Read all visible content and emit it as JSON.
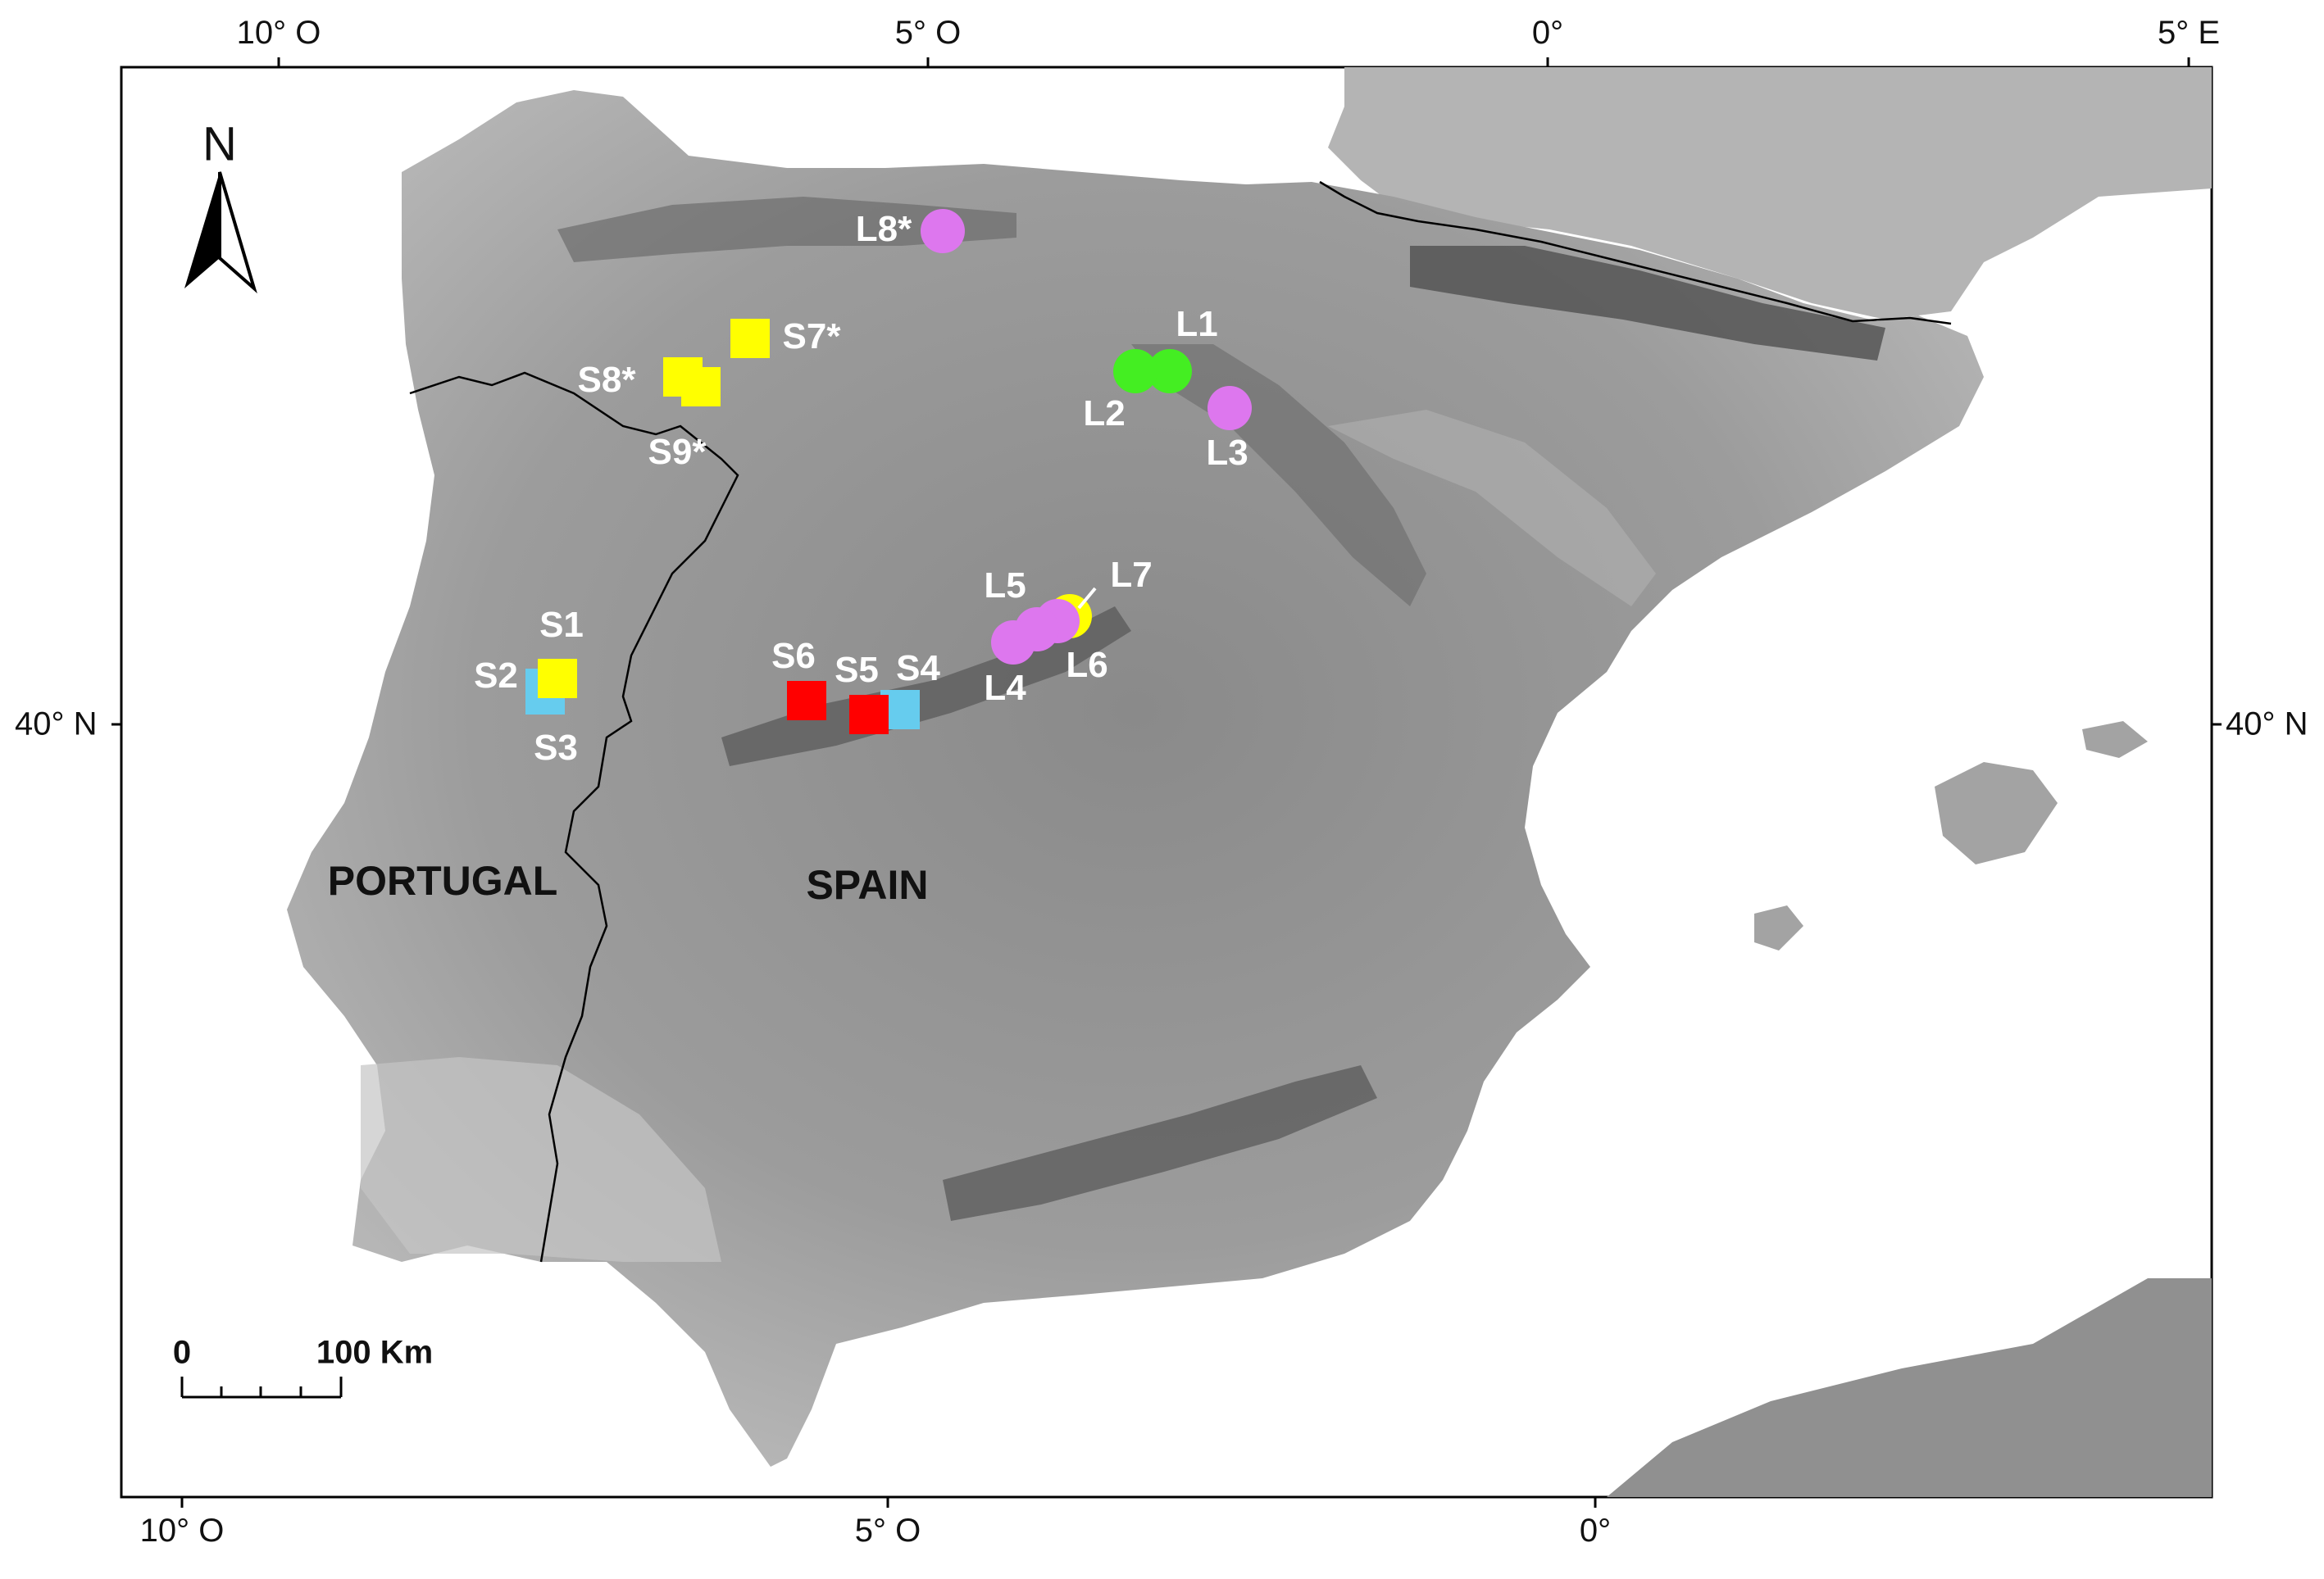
{
  "map": {
    "graticule": {
      "top": [
        "10° O",
        "5° O",
        "0°",
        "5° E"
      ],
      "bottom": [
        "10° O",
        "5° O",
        "0°"
      ],
      "left": "40° N",
      "right": "40° N"
    },
    "countries": [
      "PORTUGAL",
      "SPAIN"
    ],
    "north_arrow": "N",
    "scale_bar": {
      "start": "0",
      "end": "100 Km"
    },
    "legend_colors": {
      "yellow": "#ffff00",
      "cyan": "#66ccee",
      "red": "#ff0000",
      "green": "#44ee22",
      "violet": "#dd77ee"
    },
    "sites": [
      {
        "label": "S1",
        "shape": "square",
        "color": "#ffff00"
      },
      {
        "label": "S2",
        "shape": "square",
        "color": "#66ccee"
      },
      {
        "label": "S3",
        "shape": "square",
        "color": "#66ccee"
      },
      {
        "label": "S4",
        "shape": "square",
        "color": "#66ccee"
      },
      {
        "label": "S5",
        "shape": "square",
        "color": "#ff0000"
      },
      {
        "label": "S6",
        "shape": "square",
        "color": "#ff0000"
      },
      {
        "label": "S7*",
        "shape": "square",
        "color": "#ffff00"
      },
      {
        "label": "S8*",
        "shape": "square",
        "color": "#ffff00"
      },
      {
        "label": "S9*",
        "shape": "square",
        "color": "#ffff00"
      },
      {
        "label": "L1",
        "shape": "circle",
        "color": "#44ee22"
      },
      {
        "label": "L2",
        "shape": "circle",
        "color": "#44ee22"
      },
      {
        "label": "L3",
        "shape": "circle",
        "color": "#dd77ee"
      },
      {
        "label": "L4",
        "shape": "circle",
        "color": "#dd77ee"
      },
      {
        "label": "L5",
        "shape": "circle",
        "color": "#dd77ee"
      },
      {
        "label": "L6",
        "shape": "circle",
        "color": "#dd77ee"
      },
      {
        "label": "L7",
        "shape": "circle",
        "color": "#ffff00"
      },
      {
        "label": "L8*",
        "shape": "circle",
        "color": "#dd77ee"
      }
    ]
  }
}
